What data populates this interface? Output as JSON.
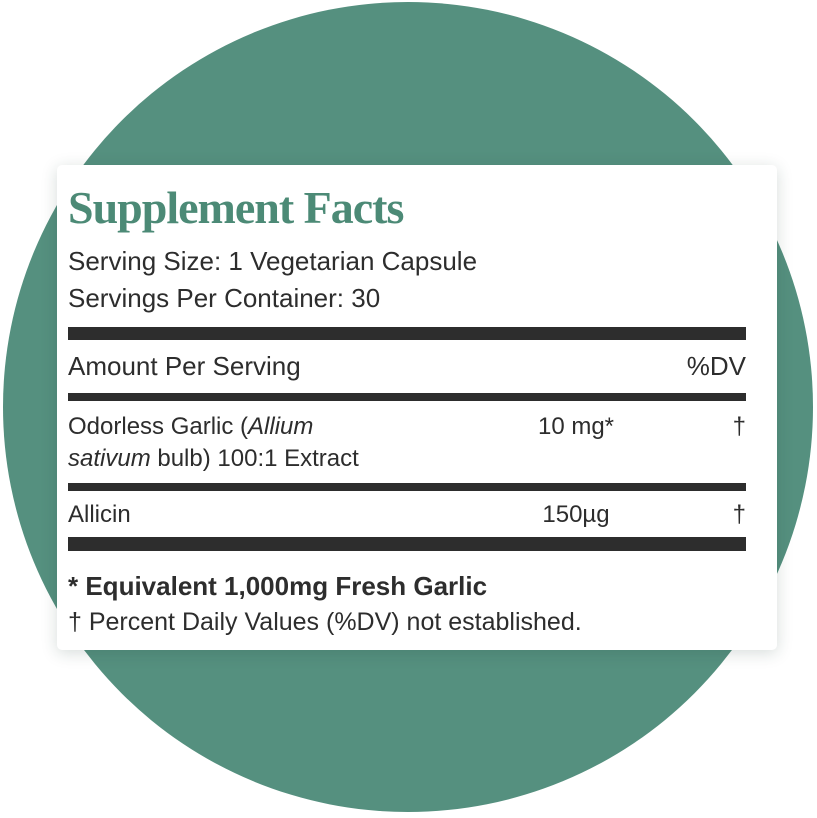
{
  "colors": {
    "circle_teal": "#55907f",
    "title_teal": "#4c8a76",
    "text_dark": "#2d2d2d",
    "card_bg": "#ffffff"
  },
  "label": {
    "title": "Supplement Facts",
    "serving_size": "Serving Size: 1 Vegetarian Capsule",
    "servings_per_container": "Servings Per Container: 30",
    "header": {
      "amount_col": "Amount Per Serving",
      "dv_col": "%DV"
    },
    "rows": [
      {
        "name_seg1": "Odorless Garlic (",
        "name_seg2_italic": "Allium",
        "name_seg3_italic": "sativum ",
        "name_seg4": "bulb) 100:1 Extract",
        "amount": "10 mg*",
        "dv": "†"
      },
      {
        "name": "Allicin",
        "amount": "150µg",
        "dv": "†"
      }
    ],
    "footnote_equivalent": "* Equivalent 1,000mg Fresh Garlic",
    "footnote_dv": "† Percent Daily Values (%DV) not established."
  }
}
